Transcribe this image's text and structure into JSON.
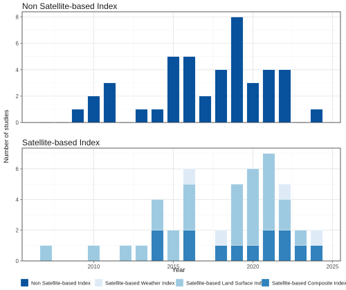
{
  "chart_data": [
    {
      "type": "bar",
      "title": "Non Satellite-based Index",
      "xlabel": "Year",
      "ylabel": "Number of studies",
      "xlim": [
        2005.5,
        2025.5
      ],
      "ylim": [
        0,
        8.4
      ],
      "yticks": [
        0,
        2,
        4,
        6,
        8
      ],
      "xticks": [
        2010,
        2015,
        2020,
        2025
      ],
      "grid": true,
      "x": [
        2007,
        2008,
        2009,
        2010,
        2011,
        2012,
        2013,
        2014,
        2015,
        2016,
        2017,
        2018,
        2019,
        2020,
        2021,
        2022,
        2023,
        2024
      ],
      "series": [
        {
          "name": "Non Satellite-based Index",
          "color": "#08519c",
          "values": [
            0,
            0,
            1,
            2,
            3,
            0,
            1,
            1,
            5,
            5,
            2,
            4,
            8,
            3,
            4,
            4,
            0,
            1
          ]
        }
      ]
    },
    {
      "type": "bar",
      "stacked": true,
      "title": "Satellite-based Index",
      "xlabel": "Year",
      "ylabel": "Number of studies",
      "xlim": [
        2005.5,
        2025.5
      ],
      "ylim": [
        0,
        7.35
      ],
      "yticks": [
        0,
        2,
        4,
        6
      ],
      "xticks": [
        2010,
        2015,
        2020,
        2025
      ],
      "grid": true,
      "x": [
        2007,
        2010,
        2012,
        2013,
        2014,
        2015,
        2016,
        2018,
        2019,
        2020,
        2021,
        2022,
        2023,
        2024
      ],
      "series": [
        {
          "name": "Satellite-based Composite Index",
          "color": "#3182bd",
          "values": [
            0,
            0,
            0,
            0,
            2,
            0,
            2,
            1,
            1,
            1,
            2,
            2,
            1,
            1
          ]
        },
        {
          "name": "Satellite-based Land Surface Index",
          "color": "#9ecae1",
          "values": [
            1,
            1,
            1,
            1,
            2,
            2,
            3,
            0,
            4,
            5,
            5,
            2,
            1,
            0
          ]
        },
        {
          "name": "Satellite-based Weather Index",
          "color": "#deebf7",
          "values": [
            0,
            0,
            0,
            0,
            0,
            0,
            1,
            1,
            0,
            0,
            0,
            1,
            0,
            1
          ]
        }
      ]
    }
  ],
  "legend": {
    "position": "bottom",
    "items": [
      {
        "label": "Non Satellite-based Index",
        "color": "#08519c"
      },
      {
        "label": "Satellite-based Weather Index",
        "color": "#deebf7"
      },
      {
        "label": "Satellite-based Land Surface Index",
        "color": "#9ecae1"
      },
      {
        "label": "Satellite-based Composite Index",
        "color": "#3182bd"
      }
    ]
  }
}
